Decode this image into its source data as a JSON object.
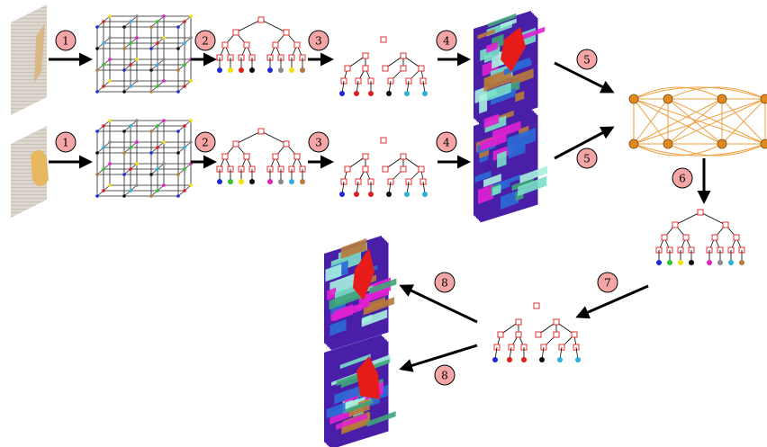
{
  "steps": {
    "s1": "1",
    "s2": "2",
    "s3": "3",
    "s4": "4",
    "s5": "5",
    "s6": "6",
    "s7": "7",
    "s8": "8"
  },
  "colors": {
    "step_circle_fill": "#f4a6a6",
    "tree_node": "#e03030",
    "graph_node": "#e08a1e",
    "graph_edge": "#f0a040",
    "arrow": "#000000",
    "leaf_palette": [
      "#1d2bd6",
      "#e31b1b",
      "#f2e20c",
      "#0a0a0a",
      "#2bb0e0",
      "#8a8a8a",
      "#b87a3a",
      "#2ec22e",
      "#e020c0"
    ],
    "segment_palette": [
      "#4a1fa8",
      "#3fa37a",
      "#78e0c8",
      "#a8f0e0",
      "#e020d0",
      "#2a6bd6",
      "#b77a3a",
      "#e81b1b",
      "#f0a0c0"
    ]
  }
}
